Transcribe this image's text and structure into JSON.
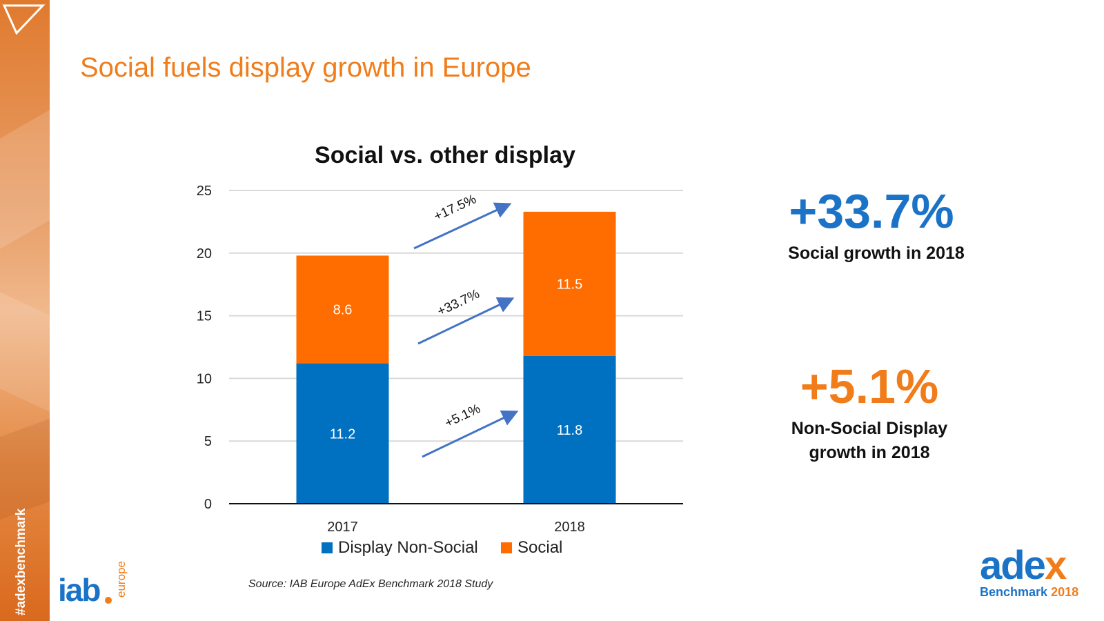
{
  "sidebar": {
    "hashtag": "#adexbenchmark"
  },
  "page": {
    "title": "Social fuels display growth in Europe"
  },
  "chart_data": {
    "type": "bar",
    "stacked": true,
    "title": "Social vs. other display",
    "categories": [
      "2017",
      "2018"
    ],
    "series": [
      {
        "name": "Display Non-Social",
        "values": [
          11.2,
          11.8
        ],
        "color": "#0070c0"
      },
      {
        "name": "Social",
        "values": [
          8.6,
          11.5
        ],
        "color": "#ff6d00"
      }
    ],
    "ylim": [
      0,
      25
    ],
    "yticks": [
      0,
      5,
      10,
      15,
      20,
      25
    ],
    "xlabel": "",
    "ylabel": "",
    "grid": true,
    "legend": "bottom",
    "annotations": [
      {
        "label": "+17.5%",
        "refers_to": "total"
      },
      {
        "label": "+33.7%",
        "refers_to": "Social"
      },
      {
        "label": "+5.1%",
        "refers_to": "Display Non-Social"
      }
    ]
  },
  "kpis": [
    {
      "value": "+33.7%",
      "label": "Social growth in 2018",
      "color": "#1a73c6"
    },
    {
      "value": "+5.1%",
      "label_line1": "Non-Social Display",
      "label_line2": "growth in 2018",
      "color": "#f07d1a"
    }
  ],
  "source": "Source: IAB Europe AdEx Benchmark 2018 Study",
  "logos": {
    "iab": {
      "main": "iab",
      "sub": "europe"
    },
    "adex": {
      "word_main": "ade",
      "word_accent": "x",
      "bench": "Benchmark",
      "year": "2018"
    }
  }
}
